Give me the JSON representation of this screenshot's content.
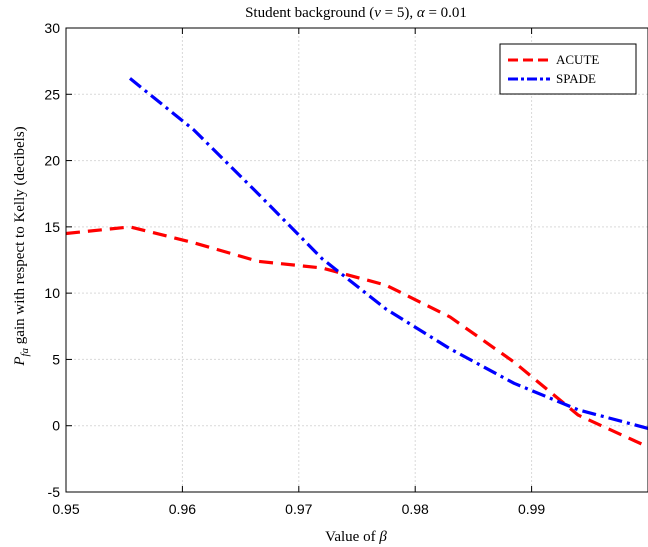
{
  "chart_data": {
    "type": "line",
    "title": "Student background (ν = 5), α = 0.01",
    "xlabel": "Value of β",
    "ylabel": "P_fa gain with respect to Kelly (decibels)",
    "xlim": [
      0.95,
      1.0
    ],
    "ylim": [
      -5,
      30
    ],
    "xticks": [
      0.95,
      0.96,
      0.97,
      0.98,
      0.99
    ],
    "xtick_labels": [
      "0.95",
      "0.96",
      "0.97",
      "0.98",
      "0.99"
    ],
    "yticks": [
      -5,
      0,
      5,
      10,
      15,
      20,
      25,
      30
    ],
    "ytick_labels": [
      "-5",
      "0",
      "5",
      "10",
      "15",
      "20",
      "25",
      "30"
    ],
    "grid": true,
    "legend_position": "top-right",
    "series": [
      {
        "name": "ACUTE",
        "color": "#ff0000",
        "style": "dashed",
        "x": [
          0.95,
          0.9555,
          0.961,
          0.9665,
          0.972,
          0.9775,
          0.983,
          0.9885,
          0.994,
          1.0
        ],
        "y": [
          14.5,
          15.0,
          13.8,
          12.4,
          11.9,
          10.6,
          8.2,
          4.8,
          0.8,
          -1.6
        ]
      },
      {
        "name": "SPADE",
        "color": "#0000ff",
        "style": "dashdot",
        "x": [
          0.9555,
          0.961,
          0.9665,
          0.972,
          0.9775,
          0.983,
          0.9885,
          0.994,
          1.0
        ],
        "y": [
          26.2,
          22.3,
          17.5,
          12.6,
          8.8,
          5.8,
          3.2,
          1.2,
          -0.2
        ]
      }
    ]
  }
}
